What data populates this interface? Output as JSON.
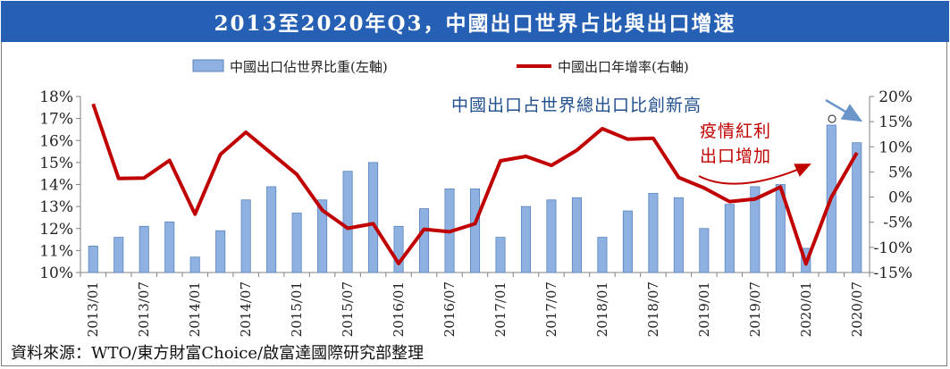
{
  "title": "2013至2020年Q3，中國出口世界占比與出口增速",
  "source": "資料來源：WTO/東方財富Choice/啟富達國際研究部整理",
  "colors": {
    "title_bg": "#2660b4",
    "bar": "#8fb1e1",
    "bar_edge": "#5a84bf",
    "line": "#c00000",
    "annotation_blue": "#1f4e8c",
    "annotation_red": "#c00000"
  },
  "chart_data": {
    "type": "bar+line",
    "categories": [
      "2013/01",
      "2013/04",
      "2013/07",
      "2013/10",
      "2014/01",
      "2014/04",
      "2014/07",
      "2014/10",
      "2015/01",
      "2015/04",
      "2015/07",
      "2015/10",
      "2016/01",
      "2016/04",
      "2016/07",
      "2016/10",
      "2017/01",
      "2017/04",
      "2017/07",
      "2017/10",
      "2018/01",
      "2018/04",
      "2018/07",
      "2018/10",
      "2019/01",
      "2019/04",
      "2019/07",
      "2019/10",
      "2020/01",
      "2020/04",
      "2020/07"
    ],
    "x_tick_labels": [
      "2013/01",
      "2013/07",
      "2014/01",
      "2014/07",
      "2015/01",
      "2015/07",
      "2016/01",
      "2016/07",
      "2017/01",
      "2017/07",
      "2018/01",
      "2018/07",
      "2019/01",
      "2019/07",
      "2020/01",
      "2020/07"
    ],
    "series": [
      {
        "name": "中國出口佔世界比重(左軸)",
        "axis": "left",
        "kind": "bar",
        "values": [
          11.2,
          11.6,
          12.1,
          12.3,
          10.7,
          11.9,
          13.3,
          13.9,
          12.7,
          13.3,
          14.6,
          15.0,
          12.1,
          12.9,
          13.8,
          13.8,
          11.6,
          13.0,
          13.3,
          13.4,
          11.6,
          12.8,
          13.6,
          13.4,
          12.0,
          13.1,
          13.9,
          14.0,
          11.1,
          16.7,
          15.9
        ]
      },
      {
        "name": "中國出口年增率(右軸)",
        "axis": "right",
        "kind": "line",
        "values": [
          18.5,
          3.7,
          3.8,
          7.3,
          -3.4,
          8.5,
          12.9,
          8.7,
          4.5,
          -2.6,
          -6.2,
          -5.3,
          -13.2,
          -6.4,
          -6.9,
          -5.3,
          7.2,
          8.1,
          6.3,
          9.3,
          13.6,
          11.5,
          11.7,
          3.9,
          1.8,
          -0.9,
          -0.4,
          2.0,
          -13.3,
          0.0,
          8.8
        ]
      }
    ],
    "left_axis": {
      "ylim": [
        10,
        18
      ],
      "ticks": [
        "10%",
        "11%",
        "12%",
        "13%",
        "14%",
        "15%",
        "16%",
        "17%",
        "18%"
      ]
    },
    "right_axis": {
      "ylim": [
        -15,
        20
      ],
      "ticks": [
        "-15%",
        "-10%",
        "-5%",
        "0%",
        "5%",
        "10%",
        "15%",
        "20%"
      ]
    },
    "legend_position": "top",
    "annotations": {
      "high": "中國出口占世界總出口比創新高",
      "covid_line1": "疫情紅利",
      "covid_line2": "出口增加"
    }
  }
}
